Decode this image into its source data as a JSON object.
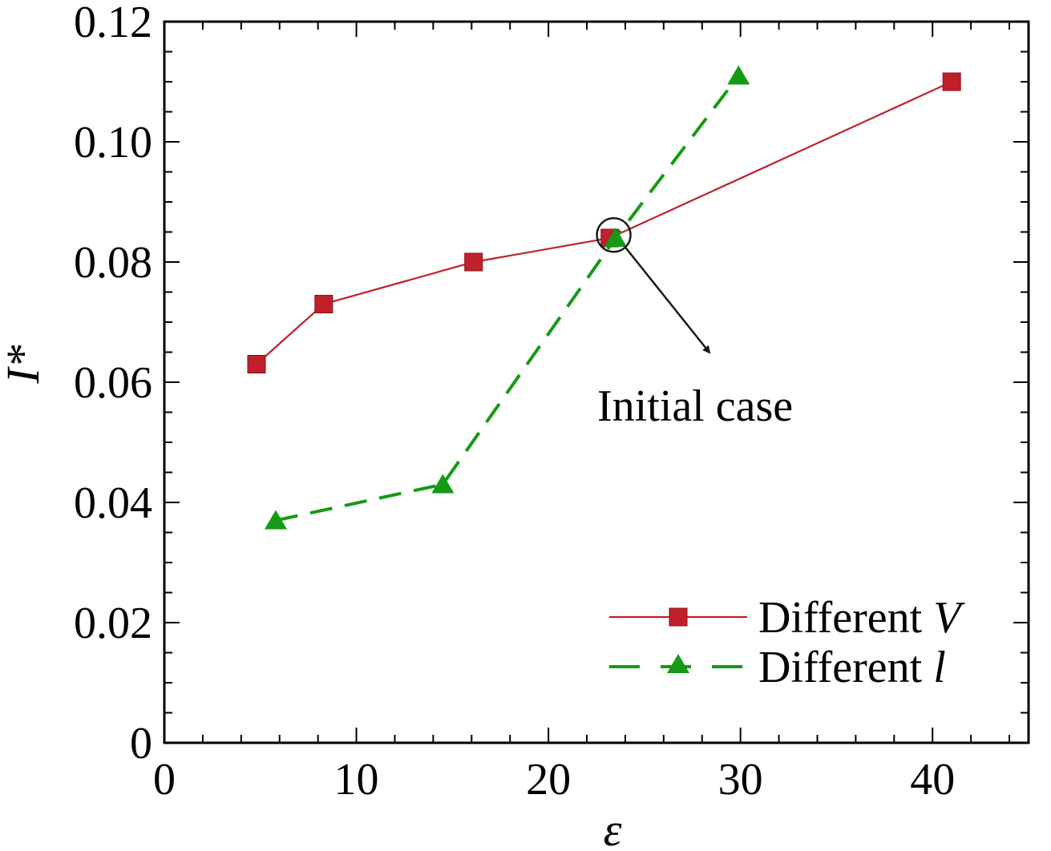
{
  "chart_data": {
    "type": "line",
    "title": "",
    "xlabel": "ε",
    "ylabel": "I*",
    "xlim": [
      0,
      45
    ],
    "ylim": [
      0,
      0.12
    ],
    "x_ticks": [
      0,
      10,
      20,
      30,
      40
    ],
    "x_tick_labels": [
      "0",
      "10",
      "20",
      "30",
      "40"
    ],
    "y_ticks": [
      0,
      0.02,
      0.04,
      0.06,
      0.08,
      0.1,
      0.12
    ],
    "y_tick_labels": [
      "0",
      "0.02",
      "0.04",
      "0.06",
      "0.08",
      "0.10",
      "0.12"
    ],
    "grid": false,
    "legend_position": "bottom-right",
    "series": [
      {
        "name": "Different V",
        "legend_prefix": "Different ",
        "legend_var": "V",
        "color": "#c0202a",
        "line_style": "solid",
        "marker": "square",
        "x": [
          4.8,
          8.3,
          16.1,
          23.2,
          41.0
        ],
        "y": [
          0.063,
          0.073,
          0.08,
          0.084,
          0.11
        ]
      },
      {
        "name": "Different l",
        "legend_prefix": "Different ",
        "legend_var": "l",
        "color": "#159a15",
        "line_style": "dashed",
        "marker": "triangle",
        "x": [
          5.8,
          14.5,
          23.5,
          29.9
        ],
        "y": [
          0.037,
          0.043,
          0.084,
          0.111
        ]
      }
    ],
    "annotations": [
      {
        "text": "Initial case",
        "x": 23.4,
        "y": 0.0845
      }
    ]
  }
}
